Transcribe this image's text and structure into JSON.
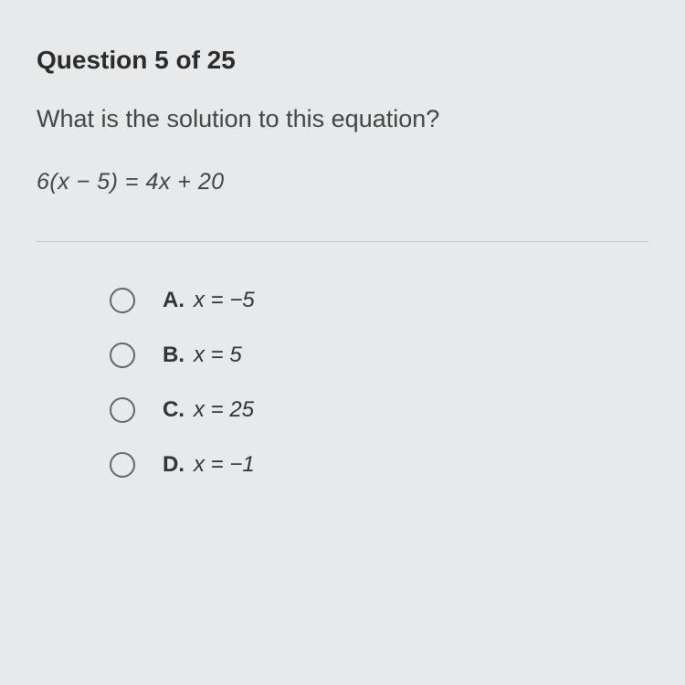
{
  "header": "Question 5 of 25",
  "questionText": "What is the solution to this equation?",
  "equation": "6(x − 5) = 4x + 20",
  "options": [
    {
      "label": "A.",
      "value": "x = −5"
    },
    {
      "label": "B.",
      "value": "x = 5"
    },
    {
      "label": "C.",
      "value": "x = 25"
    },
    {
      "label": "D.",
      "value": "x = −1"
    }
  ],
  "styling": {
    "background_color": "#e8e9ea",
    "text_color": "#3a3a3a",
    "header_fontsize": 28,
    "body_fontsize": 27,
    "option_fontsize": 24,
    "radio_border_color": "#666",
    "divider_color": "#c5c5c5"
  }
}
